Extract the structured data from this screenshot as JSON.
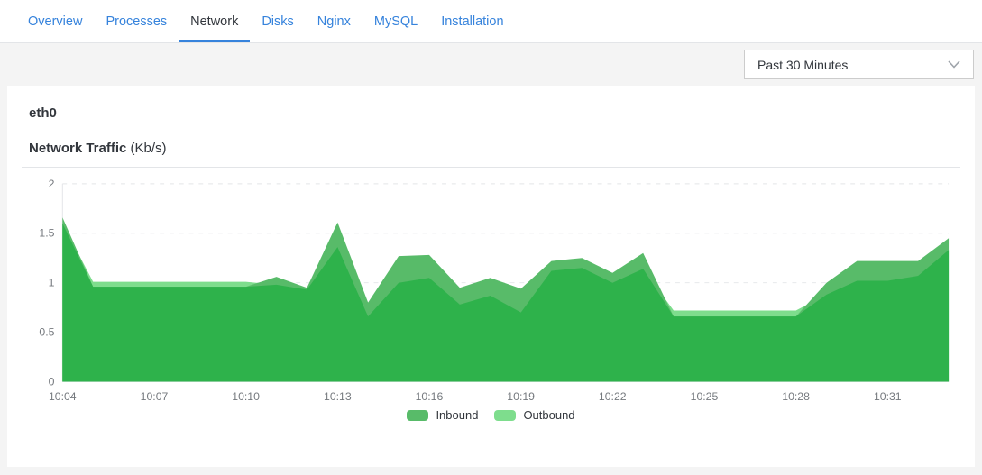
{
  "tabs": {
    "items": [
      {
        "label": "Overview",
        "active": false
      },
      {
        "label": "Processes",
        "active": false
      },
      {
        "label": "Network",
        "active": true
      },
      {
        "label": "Disks",
        "active": false
      },
      {
        "label": "Nginx",
        "active": false
      },
      {
        "label": "MySQL",
        "active": false
      },
      {
        "label": "Installation",
        "active": false
      }
    ]
  },
  "time_range_select": {
    "value": "Past 30 Minutes"
  },
  "card": {
    "interface_name": "eth0",
    "chart_title": "Network Traffic",
    "chart_unit": "(Kb/s)"
  },
  "colors": {
    "accent_blue": "#3683dc",
    "inbound": "#58bb69",
    "outbound": "#7edd8d",
    "overlap": "#2eb24b",
    "gridline": "#e3e5e8",
    "tick_text": "#75797e"
  },
  "chart_data": {
    "type": "area",
    "title": "Network Traffic (Kb/s)",
    "ylabel": "Kb/s",
    "ylim": [
      0,
      2
    ],
    "yticks": [
      0,
      0.5,
      1,
      1.5,
      2
    ],
    "grid": "dashed-horizontal",
    "legend_position": "bottom",
    "x": [
      "10:04",
      "10:05",
      "10:06",
      "10:07",
      "10:08",
      "10:09",
      "10:10",
      "10:11",
      "10:12",
      "10:13",
      "10:14",
      "10:15",
      "10:16",
      "10:17",
      "10:18",
      "10:19",
      "10:20",
      "10:21",
      "10:22",
      "10:23",
      "10:24",
      "10:25",
      "10:26",
      "10:27",
      "10:28",
      "10:29",
      "10:30",
      "10:31",
      "10:32",
      "10:33"
    ],
    "xtick_labels": [
      "10:04",
      "10:07",
      "10:10",
      "10:13",
      "10:16",
      "10:19",
      "10:22",
      "10:25",
      "10:28",
      "10:31"
    ],
    "series": [
      {
        "name": "Inbound",
        "values": [
          1.66,
          0.96,
          0.96,
          0.96,
          0.96,
          0.96,
          0.96,
          1.06,
          0.95,
          1.61,
          0.8,
          1.27,
          1.28,
          0.95,
          1.05,
          0.94,
          1.22,
          1.25,
          1.1,
          1.3,
          0.66,
          0.66,
          0.66,
          0.66,
          0.66,
          1.0,
          1.22,
          1.22,
          1.22,
          1.45
        ]
      },
      {
        "name": "Outbound",
        "values": [
          1.6,
          1.01,
          1.01,
          1.01,
          1.01,
          1.01,
          1.01,
          0.98,
          0.93,
          1.36,
          0.66,
          1.0,
          1.05,
          0.78,
          0.87,
          0.7,
          1.12,
          1.15,
          1.0,
          1.14,
          0.72,
          0.72,
          0.72,
          0.72,
          0.72,
          0.88,
          1.02,
          1.02,
          1.07,
          1.33
        ]
      }
    ]
  }
}
